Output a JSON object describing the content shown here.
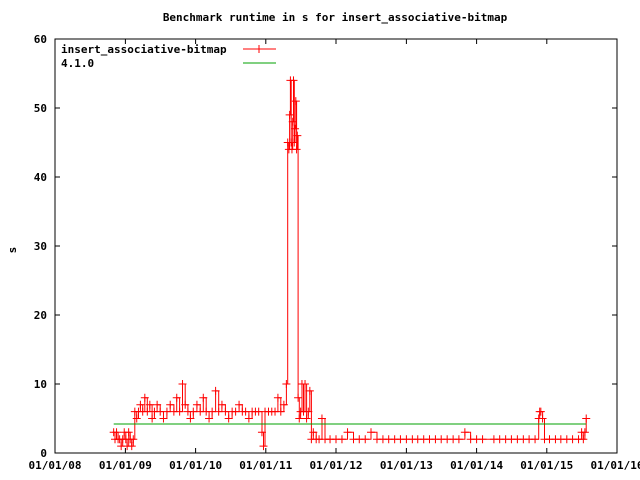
{
  "chart_data": {
    "type": "line",
    "title": "Benchmark runtime in s for insert_associative-bitmap",
    "xlabel": "",
    "ylabel": "s",
    "xlim": [
      "2008-01-01",
      "2016-01-01"
    ],
    "ylim": [
      0,
      60
    ],
    "x_ticks": [
      "01/01/08",
      "01/01/09",
      "01/01/10",
      "01/01/11",
      "01/01/12",
      "01/01/13",
      "01/01/14",
      "01/01/15",
      "01/01/16"
    ],
    "y_ticks": [
      "0",
      "10",
      "20",
      "30",
      "40",
      "50",
      "60"
    ],
    "legend_position": "top-left",
    "grid": false,
    "series": [
      {
        "name": "insert_associative-bitmap",
        "color": "#ff0000",
        "marker": "plus",
        "points": [
          [
            "2008-11-01",
            3
          ],
          [
            "2008-11-08",
            2
          ],
          [
            "2008-11-16",
            3
          ],
          [
            "2008-11-24",
            2
          ],
          [
            "2008-12-02",
            2
          ],
          [
            "2008-12-10",
            1
          ],
          [
            "2008-12-18",
            2
          ],
          [
            "2008-12-26",
            3
          ],
          [
            "2009-01-03",
            2
          ],
          [
            "2009-01-10",
            1
          ],
          [
            "2009-01-18",
            3
          ],
          [
            "2009-01-26",
            2
          ],
          [
            "2009-02-03",
            1
          ],
          [
            "2009-02-11",
            2
          ],
          [
            "2009-02-19",
            6
          ],
          [
            "2009-03-01",
            5
          ],
          [
            "2009-03-10",
            6
          ],
          [
            "2009-03-20",
            7
          ],
          [
            "2009-04-01",
            6
          ],
          [
            "2009-04-12",
            8
          ],
          [
            "2009-04-25",
            6
          ],
          [
            "2009-05-08",
            7
          ],
          [
            "2009-05-20",
            5
          ],
          [
            "2009-06-01",
            6
          ],
          [
            "2009-06-15",
            7
          ],
          [
            "2009-07-01",
            6
          ],
          [
            "2009-07-18",
            5
          ],
          [
            "2009-08-05",
            6
          ],
          [
            "2009-08-22",
            7
          ],
          [
            "2009-09-10",
            6
          ],
          [
            "2009-09-25",
            8
          ],
          [
            "2009-10-10",
            6
          ],
          [
            "2009-10-25",
            10
          ],
          [
            "2009-11-08",
            7
          ],
          [
            "2009-11-22",
            6
          ],
          [
            "2009-12-05",
            5
          ],
          [
            "2009-12-20",
            6
          ],
          [
            "2010-01-08",
            7
          ],
          [
            "2010-01-25",
            6
          ],
          [
            "2010-02-10",
            8
          ],
          [
            "2010-02-25",
            6
          ],
          [
            "2010-03-12",
            5
          ],
          [
            "2010-03-28",
            6
          ],
          [
            "2010-04-15",
            9
          ],
          [
            "2010-05-01",
            6
          ],
          [
            "2010-05-18",
            7
          ],
          [
            "2010-06-05",
            6
          ],
          [
            "2010-06-22",
            5
          ],
          [
            "2010-07-10",
            6
          ],
          [
            "2010-07-28",
            6
          ],
          [
            "2010-08-15",
            7
          ],
          [
            "2010-09-01",
            6
          ],
          [
            "2010-09-18",
            6
          ],
          [
            "2010-10-05",
            5
          ],
          [
            "2010-10-22",
            6
          ],
          [
            "2010-11-08",
            6
          ],
          [
            "2010-11-25",
            6
          ],
          [
            "2010-12-12",
            3
          ],
          [
            "2010-12-20",
            1
          ],
          [
            "2010-12-28",
            6
          ],
          [
            "2011-01-15",
            6
          ],
          [
            "2011-02-01",
            6
          ],
          [
            "2011-02-18",
            6
          ],
          [
            "2011-03-05",
            8
          ],
          [
            "2011-03-20",
            6
          ],
          [
            "2011-04-05",
            7
          ],
          [
            "2011-04-18",
            10
          ],
          [
            "2011-04-25",
            45
          ],
          [
            "2011-05-01",
            44
          ],
          [
            "2011-05-05",
            49
          ],
          [
            "2011-05-09",
            54
          ],
          [
            "2011-05-13",
            45
          ],
          [
            "2011-05-17",
            44
          ],
          [
            "2011-05-21",
            48
          ],
          [
            "2011-05-25",
            54
          ],
          [
            "2011-05-29",
            45
          ],
          [
            "2011-06-02",
            47
          ],
          [
            "2011-06-06",
            51
          ],
          [
            "2011-06-10",
            44
          ],
          [
            "2011-06-14",
            46
          ],
          [
            "2011-06-18",
            8
          ],
          [
            "2011-06-24",
            5
          ],
          [
            "2011-07-01",
            6
          ],
          [
            "2011-07-08",
            10
          ],
          [
            "2011-07-16",
            6
          ],
          [
            "2011-07-24",
            10
          ],
          [
            "2011-08-01",
            5
          ],
          [
            "2011-08-10",
            6
          ],
          [
            "2011-08-18",
            9
          ],
          [
            "2011-08-26",
            2
          ],
          [
            "2011-09-05",
            3
          ],
          [
            "2011-09-20",
            2
          ],
          [
            "2011-10-05",
            2
          ],
          [
            "2011-10-20",
            5
          ],
          [
            "2011-11-05",
            2
          ],
          [
            "2011-12-01",
            2
          ],
          [
            "2012-01-01",
            2
          ],
          [
            "2012-02-01",
            2
          ],
          [
            "2012-03-01",
            3
          ],
          [
            "2012-04-01",
            2
          ],
          [
            "2012-05-01",
            2
          ],
          [
            "2012-06-01",
            2
          ],
          [
            "2012-07-01",
            3
          ],
          [
            "2012-08-01",
            2
          ],
          [
            "2012-09-01",
            2
          ],
          [
            "2012-10-01",
            2
          ],
          [
            "2012-11-01",
            2
          ],
          [
            "2012-12-01",
            2
          ],
          [
            "2013-01-01",
            2
          ],
          [
            "2013-02-01",
            2
          ],
          [
            "2013-03-01",
            2
          ],
          [
            "2013-04-01",
            2
          ],
          [
            "2013-05-01",
            2
          ],
          [
            "2013-06-01",
            2
          ],
          [
            "2013-07-01",
            2
          ],
          [
            "2013-08-01",
            2
          ],
          [
            "2013-09-01",
            2
          ],
          [
            "2013-10-01",
            2
          ],
          [
            "2013-11-01",
            3
          ],
          [
            "2013-12-01",
            2
          ],
          [
            "2014-01-01",
            2
          ],
          [
            "2014-02-01",
            2
          ],
          [
            "2014-04-01",
            2
          ],
          [
            "2014-05-01",
            2
          ],
          [
            "2014-06-01",
            2
          ],
          [
            "2014-07-01",
            2
          ],
          [
            "2014-08-01",
            2
          ],
          [
            "2014-09-01",
            2
          ],
          [
            "2014-10-01",
            2
          ],
          [
            "2014-11-01",
            2
          ],
          [
            "2014-11-20",
            5
          ],
          [
            "2014-11-25",
            6
          ],
          [
            "2014-12-01",
            6
          ],
          [
            "2014-12-10",
            5
          ],
          [
            "2014-12-20",
            2
          ],
          [
            "2015-01-15",
            2
          ],
          [
            "2015-02-15",
            2
          ],
          [
            "2015-03-15",
            2
          ],
          [
            "2015-04-15",
            2
          ],
          [
            "2015-05-15",
            2
          ],
          [
            "2015-06-15",
            2
          ],
          [
            "2015-07-01",
            3
          ],
          [
            "2015-07-10",
            2
          ],
          [
            "2015-07-18",
            3
          ],
          [
            "2015-07-25",
            5
          ]
        ]
      },
      {
        "name": "4.1.0",
        "color": "#00a000",
        "marker": "none",
        "points": [
          [
            "2008-11-01",
            4.2
          ],
          [
            "2015-07-25",
            4.2
          ]
        ]
      }
    ]
  }
}
